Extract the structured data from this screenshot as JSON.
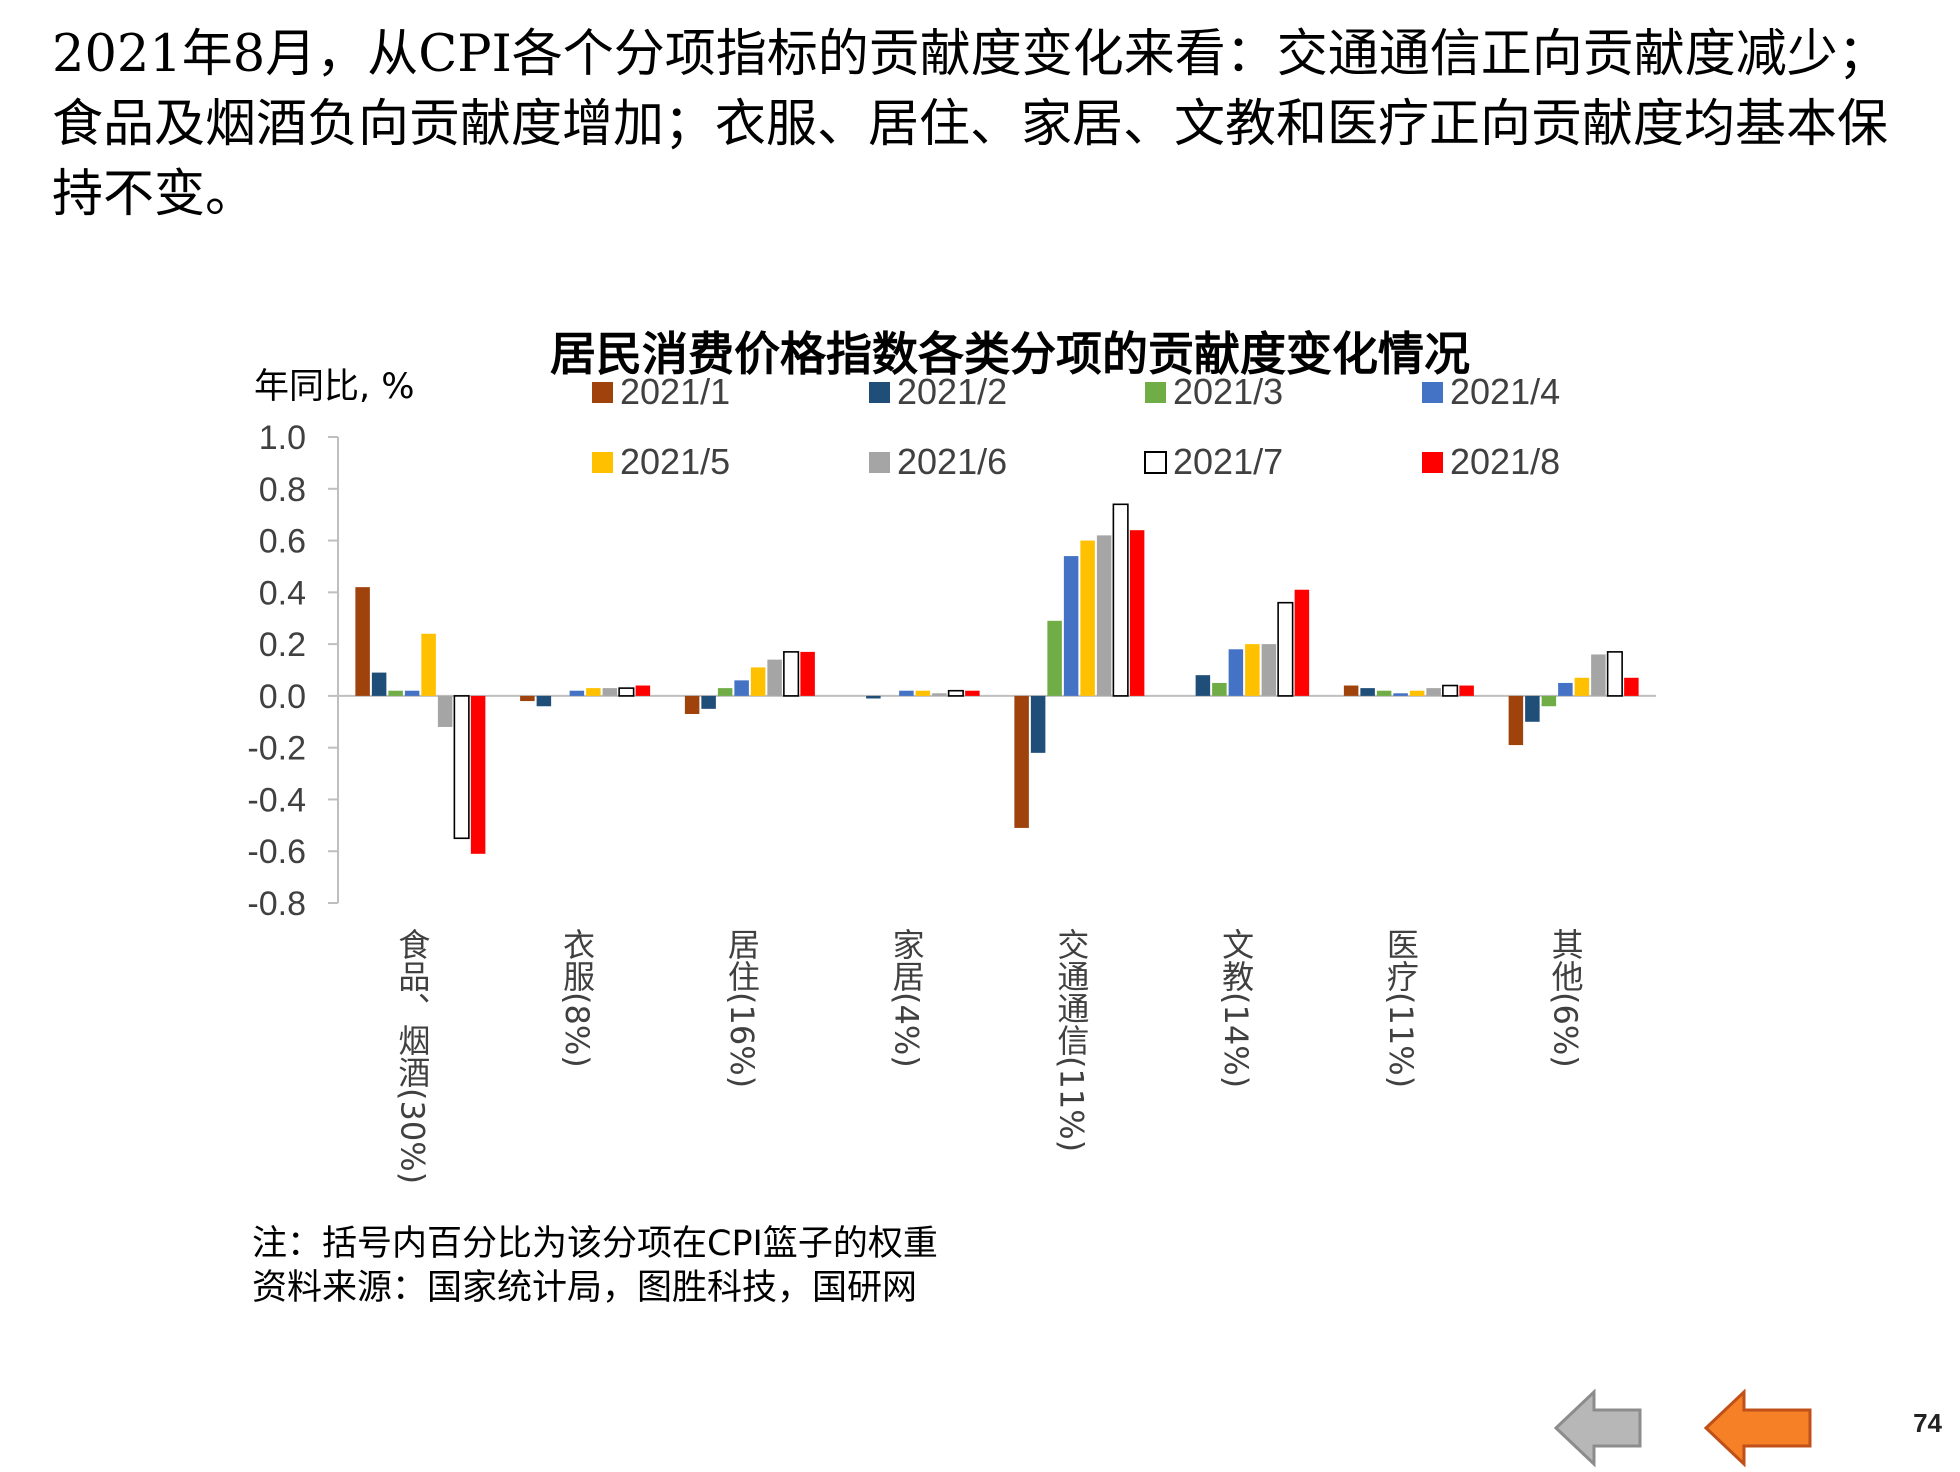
{
  "headline": "2021年8月，从CPI各个分项指标的贡献度变化来看：交通通信正向贡献度减少；食品及烟酒负向贡献度增加；衣服、居住、家居、文教和医疗正向贡献度均基本保持不变。",
  "notes": {
    "note1": "注：括号内百分比为该分项在CPI篮子的权重",
    "note2": "资料来源：国家统计局，图胜科技，国研网"
  },
  "page_number": "74",
  "nav": {
    "prev_icon": "arrow-left-gray-icon",
    "next_icon": "arrow-left-orange-icon"
  },
  "chart_data": {
    "type": "bar",
    "title": "居民消费价格指数各类分项的贡献度变化情况",
    "ylabel": "年同比, %",
    "ylim": [
      -0.8,
      1.0
    ],
    "yticks": [
      1.0,
      0.8,
      0.6,
      0.4,
      0.2,
      0.0,
      -0.2,
      -0.4,
      -0.6,
      -0.8
    ],
    "ytick_labels": [
      "1.0",
      "0.8",
      "0.6",
      "0.4",
      "0.2",
      "0.0",
      "-0.2",
      "-0.4",
      "-0.6",
      "-0.8"
    ],
    "grid": false,
    "legend_position": "top",
    "categories": [
      "食品、烟酒(30%)",
      "衣服(8%)",
      "居住(16%)",
      "家居(4%)",
      "交通通信(11%)",
      "文教(14%)",
      "医疗(11%)",
      "其他(6%)"
    ],
    "series": [
      {
        "name": "2021/1",
        "color": "#A0420C",
        "values": [
          0.42,
          -0.02,
          -0.07,
          0.0,
          -0.51,
          0.0,
          0.04,
          -0.19
        ]
      },
      {
        "name": "2021/2",
        "color": "#1F4E79",
        "values": [
          0.09,
          -0.04,
          -0.05,
          -0.01,
          -0.22,
          0.08,
          0.03,
          -0.1
        ]
      },
      {
        "name": "2021/3",
        "color": "#70AD47",
        "values": [
          0.02,
          0.0,
          0.03,
          0.0,
          0.29,
          0.05,
          0.02,
          -0.04
        ]
      },
      {
        "name": "2021/4",
        "color": "#4472C4",
        "values": [
          0.02,
          0.02,
          0.06,
          0.02,
          0.54,
          0.18,
          0.01,
          0.05
        ]
      },
      {
        "name": "2021/5",
        "color": "#FFC000",
        "values": [
          0.24,
          0.03,
          0.11,
          0.02,
          0.6,
          0.2,
          0.02,
          0.07
        ]
      },
      {
        "name": "2021/6",
        "color": "#A5A5A5",
        "values": [
          -0.12,
          0.03,
          0.14,
          0.01,
          0.62,
          0.2,
          0.03,
          0.16
        ]
      },
      {
        "name": "2021/7",
        "color": "#FFFFFF",
        "stroke": "#000000",
        "values": [
          -0.55,
          0.03,
          0.17,
          0.02,
          0.74,
          0.36,
          0.04,
          0.17
        ]
      },
      {
        "name": "2021/8",
        "color": "#FF0000",
        "values": [
          -0.61,
          0.04,
          0.17,
          0.02,
          0.64,
          0.41,
          0.04,
          0.07
        ]
      }
    ]
  }
}
